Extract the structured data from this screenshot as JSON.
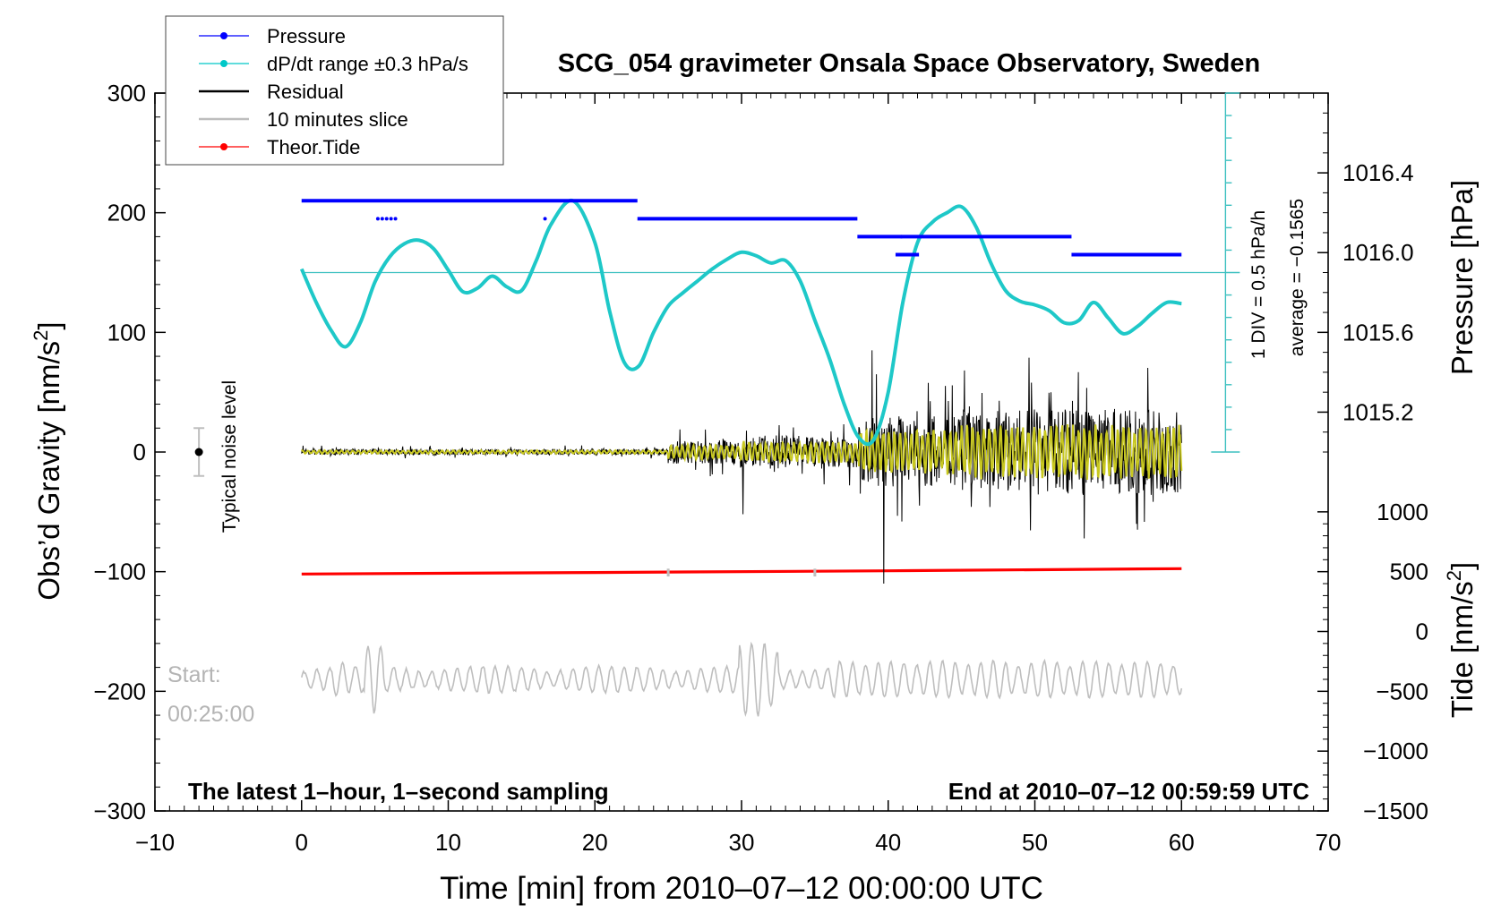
{
  "chart_data": {
    "type": "line",
    "title": "SCG_054 gravimeter Onsala Space Observatory, Sweden",
    "xlabel": "Time [min] from 2010–07–12 00:00:00 UTC",
    "ylabel_left": "Obs’d Gravity [nm/s",
    "ylabel_left_sup": "2",
    "ylabel_left_close": "]",
    "ylabel_pressure": "Pressure [hPa]",
    "ylabel_tide": "Tide [nm/s",
    "ylabel_tide_sup": "2",
    "ylabel_tide_close": "]",
    "xlim": [
      -10,
      70
    ],
    "ylim": [
      -300,
      300
    ],
    "x_ticks": [
      -10,
      0,
      10,
      20,
      30,
      40,
      50,
      60,
      70
    ],
    "x_tick_labels": [
      "−10",
      "0",
      "10",
      "20",
      "30",
      "40",
      "50",
      "60",
      "70"
    ],
    "y_ticks": [
      300,
      200,
      100,
      0,
      -100,
      -200,
      -300
    ],
    "y_tick_labels": [
      "300",
      "200",
      "100",
      "0",
      "−100",
      "−200",
      "−300"
    ],
    "pressure_ticks": [
      1016.4,
      1016.0,
      1015.6,
      1015.2
    ],
    "pressure_tick_labels": [
      "1016.4",
      "1016.0",
      "1015.6",
      "1015.2"
    ],
    "pressure_axis": {
      "value_at_gravity_300": 1016.8,
      "value_at_gravity_0": 1015.0
    },
    "tide_ticks": [
      1000,
      500,
      0,
      -500,
      -1000,
      -1500
    ],
    "tide_tick_labels": [
      "1000",
      "500",
      "0",
      "−500",
      "−1000",
      "−1500"
    ],
    "tide_axis": {
      "value_at_gravity_minus300": -1500,
      "value_at_gravity_minus50": 1000
    },
    "legend": {
      "position": "top-left",
      "entries": [
        {
          "label": "Pressure",
          "color": "#0000ff",
          "marker": true
        },
        {
          "label": "dP/dt range ±0.3 hPa/s",
          "color": "#00c8c8",
          "marker": true
        },
        {
          "label": "Residual",
          "color": "#000000",
          "marker": false
        },
        {
          "label": "10 minutes slice",
          "color": "#bebebe",
          "marker": false
        },
        {
          "label": "Theor.Tide",
          "color": "#ff0000",
          "marker": true
        }
      ]
    },
    "colors": {
      "pressure": "#0000ff",
      "dpdt": "#1ec8c8",
      "dpdt_avg": "#3cc0c0",
      "residual": "#000000",
      "residual_smooth": "#c8c820",
      "slice": "#bebebe",
      "tide": "#ff0000",
      "start_text": "#b4b4b4"
    },
    "annotations": {
      "typical_noise": "Typical noise level",
      "noise_center": 0,
      "noise_halfwidth": 20,
      "noise_x": -7,
      "div_label": "1 DIV = 0.5 hPa/h",
      "avg_label": "average = −0.1565",
      "start_label": "Start:",
      "start_time": "00:25:00",
      "bottom_left": "The latest 1–hour, 1–second sampling",
      "bottom_right": "End at 2010–07–12 00:59:59 UTC"
    },
    "dpdt_average_level": 150,
    "dpdt_scale": {
      "x": 63,
      "y_start": 0,
      "y_end": 300,
      "minor_step": 18.75,
      "major_step": 150
    },
    "pressure_segments": [
      {
        "x0": 0,
        "x1": 22.9,
        "y": 210
      },
      {
        "x0": 22.9,
        "x1": 37.9,
        "y": 195
      },
      {
        "x0": 37.9,
        "x1": 52.5,
        "y": 180
      },
      {
        "x0": 40.5,
        "x1": 42.1,
        "y": 165
      },
      {
        "x0": 52.5,
        "x1": 60,
        "y": 165
      }
    ],
    "pressure_dots": [
      {
        "x": 5.2,
        "y": 195
      },
      {
        "x": 5.5,
        "y": 195
      },
      {
        "x": 5.8,
        "y": 195
      },
      {
        "x": 6.1,
        "y": 195
      },
      {
        "x": 6.4,
        "y": 195
      },
      {
        "x": 16.6,
        "y": 195
      },
      {
        "x": 40.9,
        "y": 180
      }
    ],
    "dpdt_series": {
      "x": [
        0,
        1,
        2,
        3,
        4,
        5,
        6,
        7,
        8,
        9,
        10,
        11,
        12,
        13,
        14,
        15,
        16,
        17,
        18.5,
        20,
        21,
        22,
        23,
        24,
        25,
        26,
        27,
        28,
        29,
        30,
        31,
        32,
        33,
        34,
        35,
        36,
        37,
        38,
        39,
        40,
        41,
        42,
        43,
        44,
        45,
        46,
        47,
        48,
        49,
        50,
        51,
        52,
        53,
        54,
        55,
        56,
        57,
        58,
        59,
        60
      ],
      "y": [
        153,
        125,
        102,
        88,
        108,
        142,
        163,
        174,
        177,
        170,
        152,
        134,
        137,
        147,
        138,
        135,
        160,
        190,
        210,
        175,
        118,
        75,
        72,
        100,
        122,
        133,
        143,
        153,
        161,
        167,
        164,
        158,
        160,
        143,
        110,
        78,
        40,
        12,
        10,
        50,
        125,
        175,
        192,
        200,
        205,
        188,
        158,
        135,
        126,
        123,
        118,
        108,
        110,
        125,
        112,
        99,
        105,
        116,
        125,
        124
      ]
    },
    "tide_series": {
      "x": [
        0,
        20,
        40,
        60
      ],
      "y": [
        -102,
        -100.7,
        -99.3,
        -97.5
      ]
    },
    "tide_tick_marks": [
      25,
      35
    ],
    "residual": {
      "seed": 7,
      "x_start": 0,
      "x_end": 60,
      "step": 0.0333
    },
    "slice": {
      "seed": 19,
      "x_start": 0,
      "x_end": 60,
      "y_center": -190
    }
  }
}
